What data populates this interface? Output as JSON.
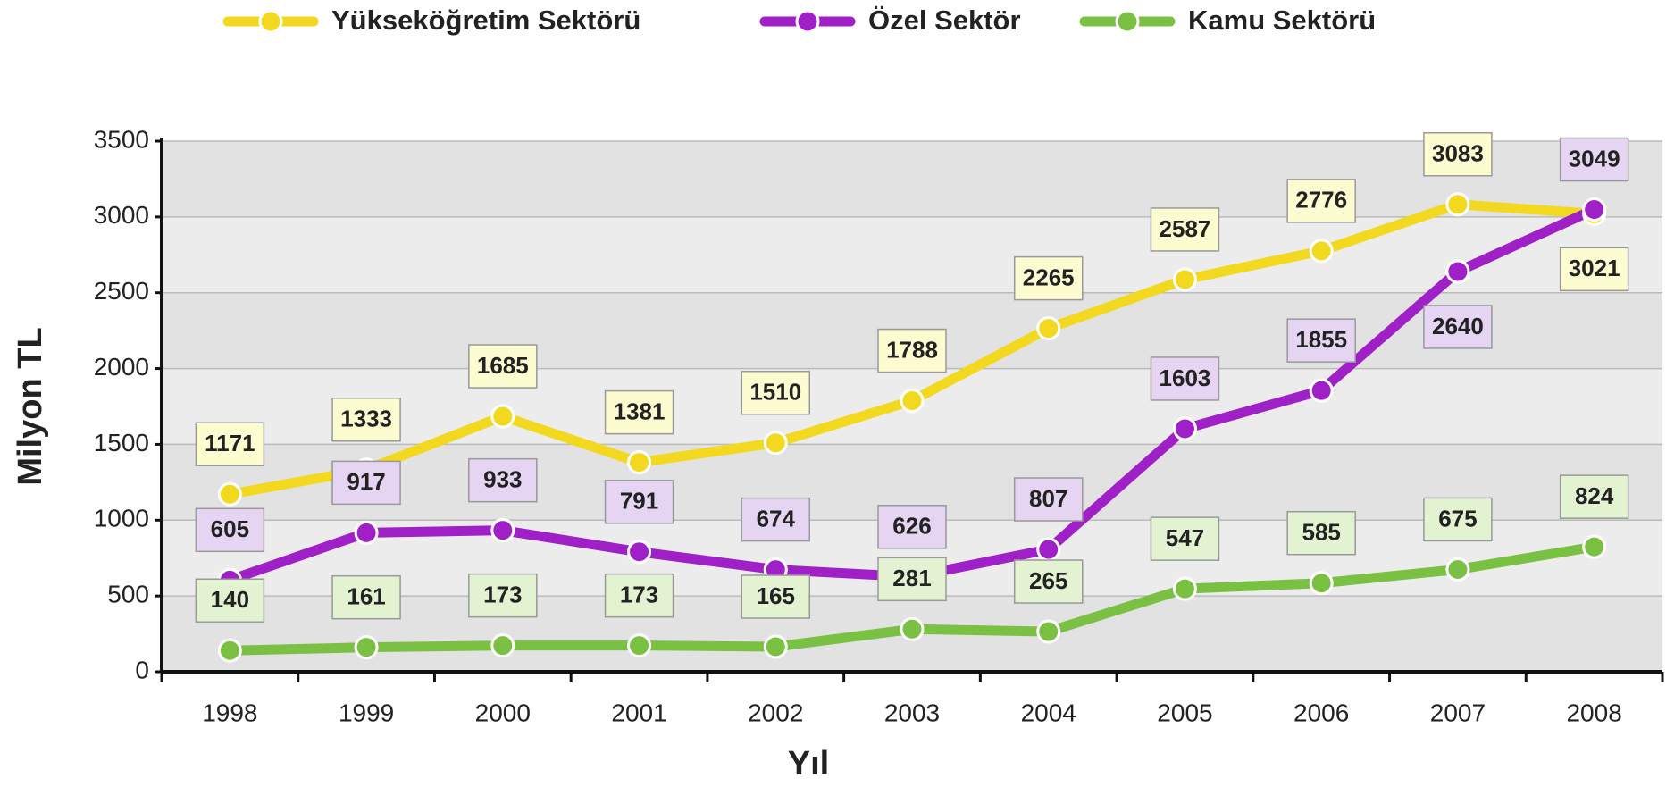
{
  "chart_data": {
    "type": "line",
    "x_label": "Yıl",
    "y_label": "Milyon TL",
    "categories": [
      "1998",
      "1999",
      "2000",
      "2001",
      "2002",
      "2003",
      "2004",
      "2005",
      "2006",
      "2007",
      "2008"
    ],
    "series": [
      {
        "name": "Yükseköğretim Sektörü",
        "color": "#f2d81e",
        "label_color": "#fdfbd0",
        "values": [
          1171,
          1333,
          1685,
          1381,
          1510,
          1788,
          2265,
          2587,
          2776,
          3083,
          3021
        ]
      },
      {
        "name": "Özel Sektör",
        "color": "#a020c8",
        "label_color": "#e6d5f2",
        "values": [
          605,
          917,
          933,
          791,
          674,
          626,
          807,
          1603,
          1855,
          2640,
          3049
        ]
      },
      {
        "name": "Kamu Sektörü",
        "color": "#7ac143",
        "label_color": "#e3f3d2",
        "values": [
          140,
          161,
          173,
          173,
          165,
          281,
          265,
          547,
          585,
          675,
          824
        ]
      }
    ],
    "ylim": [
      0,
      3500
    ],
    "yticks": [
      0,
      500,
      1000,
      1500,
      2000,
      2500,
      3000,
      3500
    ],
    "grid": true,
    "legend": "top"
  }
}
